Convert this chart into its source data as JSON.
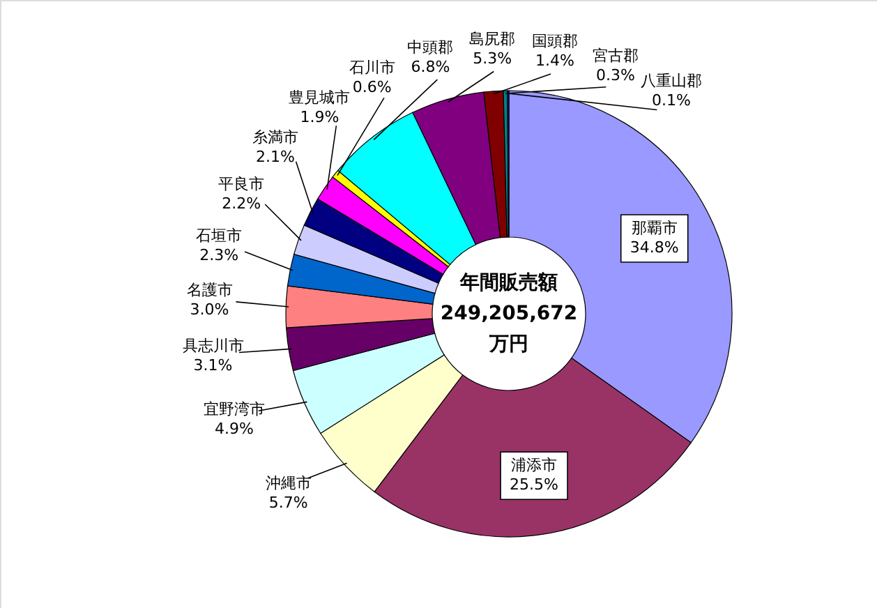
{
  "chart_data": {
    "type": "donut",
    "categories": [
      "那覇市",
      "浦添市",
      "沖縄市",
      "宜野湾市",
      "具志川市",
      "名護市",
      "石垣市",
      "平良市",
      "糸満市",
      "豊見城市",
      "石川市",
      "中頭郡",
      "島尻郡",
      "国頭郡",
      "宮古郡",
      "八重山郡"
    ],
    "values": [
      34.8,
      25.5,
      5.7,
      4.9,
      3.1,
      3.0,
      2.3,
      2.2,
      2.1,
      1.9,
      0.6,
      6.8,
      5.3,
      1.4,
      0.3,
      0.1
    ],
    "colors": [
      "#9999ff",
      "#993366",
      "#ffffcc",
      "#ccffff",
      "#660066",
      "#ff8080",
      "#0066cc",
      "#ccccff",
      "#000080",
      "#ff00ff",
      "#ffff00",
      "#00ffff",
      "#800080",
      "#800000",
      "#008080",
      "#0000ff"
    ],
    "value_labels": [
      "34.8%",
      "25.5%",
      "5.7%",
      "4.9%",
      "3.1%",
      "3.0%",
      "2.3%",
      "2.2%",
      "2.1%",
      "1.9%",
      "0.6%",
      "6.8%",
      "5.3%",
      "1.4%",
      "0.3%",
      "0.1%"
    ],
    "annotations": [
      "年間販売額",
      "249,205,672",
      "万円"
    ]
  }
}
